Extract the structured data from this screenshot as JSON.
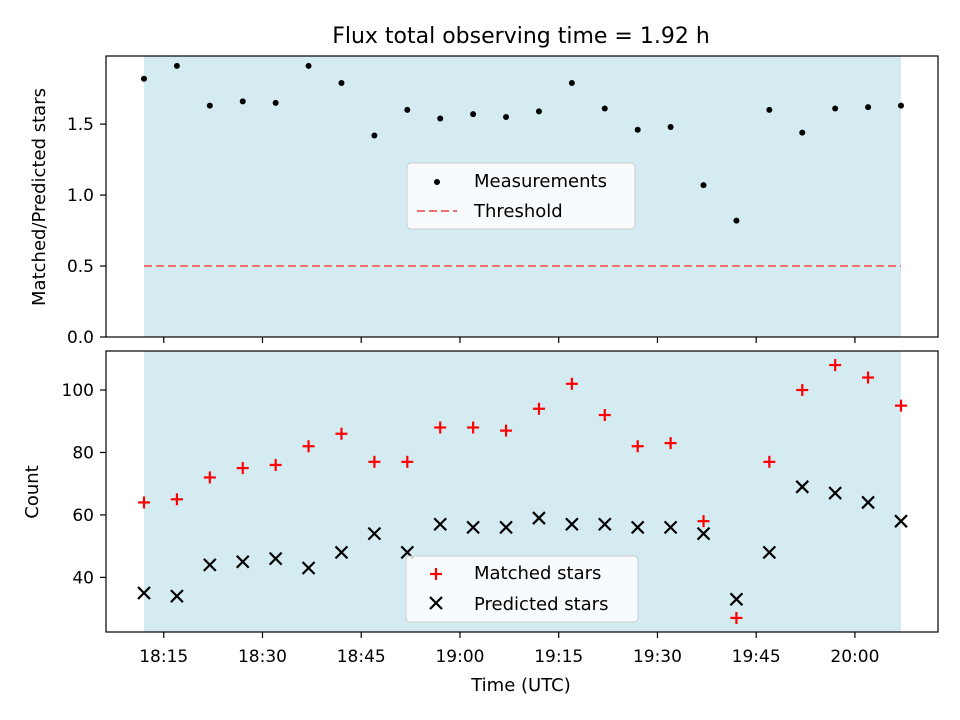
{
  "chart_data": [
    {
      "type": "scatter",
      "title": "Flux total observing time = 1.92 h",
      "ylabel": "Matched/Predicted stars",
      "xlabel": "",
      "ylim": [
        0,
        1.98
      ],
      "yticks": [
        "0.0",
        "0.5",
        "1.0",
        "1.5"
      ],
      "x": [
        "18:12",
        "18:17",
        "18:22",
        "18:27",
        "18:32",
        "18:37",
        "18:42",
        "18:47",
        "18:52",
        "18:57",
        "19:02",
        "19:07",
        "19:12",
        "19:17",
        "19:22",
        "19:27",
        "19:32",
        "19:37",
        "19:42",
        "19:47",
        "19:52",
        "19:57",
        "20:02",
        "20:07"
      ],
      "series": [
        {
          "name": "Measurements",
          "color": "#000000",
          "marker": "dot",
          "values": [
            1.82,
            1.91,
            1.63,
            1.66,
            1.65,
            1.91,
            1.79,
            1.42,
            1.6,
            1.54,
            1.57,
            1.55,
            1.59,
            1.79,
            1.61,
            1.46,
            1.48,
            1.07,
            0.82,
            1.6,
            1.44,
            1.61,
            1.62,
            1.63
          ]
        },
        {
          "name": "Threshold",
          "color": "#f07070",
          "style": "dashed",
          "value": 0.5
        }
      ],
      "shaded_band": {
        "color": "#add8e6"
      },
      "legend": "center"
    },
    {
      "type": "scatter",
      "ylabel": "Count",
      "xlabel": "Time (UTC)",
      "ylim": [
        22.5,
        112.5
      ],
      "yticks": [
        "40",
        "60",
        "80",
        "100"
      ],
      "xticks": [
        "18:15",
        "18:30",
        "18:45",
        "19:00",
        "19:15",
        "19:30",
        "19:45",
        "20:00"
      ],
      "x": [
        "18:12",
        "18:17",
        "18:22",
        "18:27",
        "18:32",
        "18:37",
        "18:42",
        "18:47",
        "18:52",
        "18:57",
        "19:02",
        "19:07",
        "19:12",
        "19:17",
        "19:22",
        "19:27",
        "19:32",
        "19:37",
        "19:42",
        "19:47",
        "19:52",
        "19:57",
        "20:02",
        "20:07"
      ],
      "series": [
        {
          "name": "Matched stars",
          "color": "#ff0000",
          "marker": "plus",
          "values": [
            64,
            65,
            72,
            75,
            76,
            82,
            86,
            77,
            77,
            88,
            88,
            87,
            94,
            102,
            92,
            82,
            83,
            58,
            27,
            77,
            100,
            108,
            104,
            95
          ]
        },
        {
          "name": "Predicted stars",
          "color": "#000000",
          "marker": "x",
          "values": [
            35,
            34,
            44,
            45,
            46,
            43,
            48,
            54,
            48,
            57,
            56,
            56,
            59,
            57,
            57,
            56,
            56,
            54,
            33,
            48,
            69,
            67,
            64,
            58
          ]
        }
      ],
      "shaded_band": {
        "color": "#add8e6"
      },
      "legend": "lower center"
    }
  ]
}
